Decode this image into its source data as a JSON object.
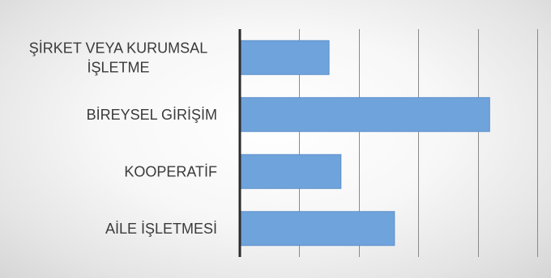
{
  "chart_data": {
    "type": "bar",
    "orientation": "horizontal",
    "title": "",
    "xlabel": "",
    "ylabel": "",
    "categories": [
      "ŞİRKET VEYA KURUMSAL İŞLETME",
      "BİREYSEL GİRİŞİM",
      "KOOPERATİF",
      "AİLE İŞLETMESİ"
    ],
    "category_lines": [
      [
        "ŞİRKET VEYA KURUMSAL",
        "İŞLETME"
      ],
      [
        "BİREYSEL GİRİŞİM"
      ],
      [
        "KOOPERATİF"
      ],
      [
        "AİLE İŞLETMESİ"
      ]
    ],
    "values": [
      1.5,
      4.2,
      1.7,
      2.6
    ],
    "xlim": [
      0,
      5
    ],
    "x_gridlines": [
      1,
      2,
      3,
      4,
      5
    ],
    "tick_labels_visible": false,
    "grid": true,
    "legend": "none",
    "colors": {
      "bar": "#6fa3dc",
      "bar_edge": "#5b8fc9",
      "grid": "#8a8a8a",
      "axis": "#2b2b2b",
      "label": "#3a3a3a"
    }
  }
}
